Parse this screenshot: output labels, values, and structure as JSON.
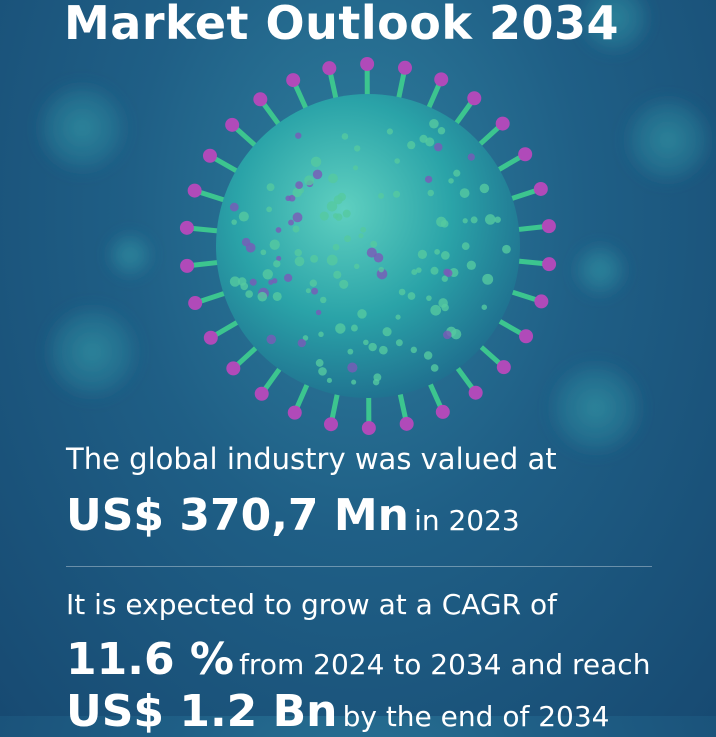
{
  "title": "Market Outlook 2034",
  "valued_intro": "The global industry was valued at",
  "value_2023": {
    "amount": "US$ 370,7 Mn",
    "suffix": "in 2023"
  },
  "growth_intro": "It is expected to grow at a CAGR of",
  "cagr": {
    "rate": "11.6 %",
    "suffix": "from 2024 to 2034 and reach"
  },
  "forecast": {
    "amount": "US$ 1.2 Bn",
    "suffix": "by the end of 2034"
  },
  "colors": {
    "background": "#1f5f86",
    "virus_body": "#2fa7a6",
    "spike_stalk": "#3cc58f",
    "spike_tip": "#b04ab9",
    "text": "#ffffff"
  }
}
